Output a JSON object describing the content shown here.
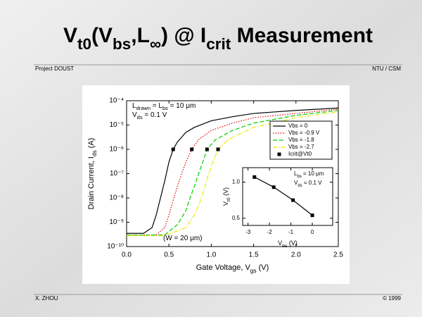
{
  "slide": {
    "title": [
      {
        "text": "V"
      },
      {
        "text": "t0",
        "sub": true
      },
      {
        "text": "(V"
      },
      {
        "text": "bs",
        "sub": true
      },
      {
        "text": ",L"
      },
      {
        "text": "∞",
        "sub": true
      },
      {
        "text": ") @ I"
      },
      {
        "text": "crit",
        "sub": true
      },
      {
        "text": " Measurement"
      }
    ],
    "header_left": "Project DOUST",
    "header_right": "NTU / CSM",
    "footer_left": "X. ZHOU",
    "footer_right": "© 1999"
  },
  "chart_data": [
    {
      "type": "line",
      "ylog": true,
      "xlabel": [
        {
          "text": "Gate Voltage, V"
        },
        {
          "text": "gs",
          "sub": true
        },
        {
          "text": " (V)"
        }
      ],
      "ylabel": [
        {
          "text": "Drain Current, I"
        },
        {
          "text": "ds",
          "sub": true
        },
        {
          "text": " (A)"
        }
      ],
      "xlim": [
        0,
        2.5
      ],
      "ylim": [
        1e-10,
        0.0001
      ],
      "xticks": [
        {
          "value": 0,
          "label": "0.0"
        },
        0.5,
        {
          "value": 1,
          "label": "1.0"
        },
        1.5,
        {
          "value": 2,
          "label": "2.0"
        },
        2.5
      ],
      "yticks": [
        {
          "value": 1e-10,
          "label": "10⁻¹⁰"
        },
        {
          "value": 1e-09,
          "label": "10⁻⁹"
        },
        {
          "value": 1e-08,
          "label": "10⁻⁸"
        },
        {
          "value": 1e-07,
          "label": "10⁻⁷"
        },
        {
          "value": 1e-06,
          "label": "10⁻⁶"
        },
        {
          "value": 1e-05,
          "label": "10⁻⁵"
        },
        {
          "value": 0.0001,
          "label": "10⁻⁴"
        }
      ],
      "annotations": [
        [
          {
            "text": "L"
          },
          {
            "text": "drawn",
            "sub": true
          },
          {
            "text": " = L"
          },
          {
            "text": "bs",
            "sub": true
          },
          {
            "text": " = 10 μm"
          }
        ],
        [
          {
            "text": "V"
          },
          {
            "text": "ds",
            "sub": true
          },
          {
            "text": " = 0.1 V"
          }
        ],
        [
          {
            "text": "(W = 20 μm)"
          }
        ]
      ],
      "legend": "upper right",
      "series": [
        {
          "name": "Vbs = 0",
          "color": "#000000",
          "style": "solid",
          "x": [
            0,
            0.2,
            0.3,
            0.35,
            0.4,
            0.45,
            0.5,
            0.55,
            0.6,
            0.7,
            0.8,
            1.0,
            1.25,
            1.5,
            2.0,
            2.5
          ],
          "values": [
            3.5e-10,
            3.5e-10,
            6e-10,
            2e-09,
            1e-08,
            5e-08,
            3e-07,
            1e-06,
            2e-06,
            5e-06,
            8e-06,
            1.5e-05,
            2.2e-05,
            3e-05,
            4e-05,
            5e-05
          ]
        },
        {
          "name": "Vbs = -0.9 V",
          "color": "#e00000",
          "style": "dotted",
          "x": [
            0,
            0.35,
            0.45,
            0.5,
            0.55,
            0.6,
            0.65,
            0.7,
            0.77,
            0.85,
            1.0,
            1.25,
            1.5,
            2.0,
            2.5
          ],
          "values": [
            3e-10,
            3e-10,
            6e-10,
            2e-09,
            8e-09,
            3e-08,
            1e-07,
            3e-07,
            1e-06,
            2.5e-06,
            6e-06,
            1.2e-05,
            2e-05,
            3e-05,
            4.5e-05
          ]
        },
        {
          "name": "Vbs = -1.8",
          "color": "#00cc00",
          "style": "dashed",
          "x": [
            0,
            0.45,
            0.6,
            0.7,
            0.75,
            0.8,
            0.85,
            0.9,
            0.95,
            1.05,
            1.25,
            1.5,
            2.0,
            2.5
          ],
          "values": [
            3e-10,
            3e-10,
            8e-10,
            3e-09,
            1e-08,
            3e-08,
            1e-07,
            3e-07,
            1e-06,
            2.5e-06,
            6e-06,
            1.2e-05,
            2.5e-05,
            4e-05
          ]
        },
        {
          "name": "Vbs = -2.7",
          "color": "#e8e800",
          "style": "dashdot",
          "x": [
            0,
            0.45,
            0.7,
            0.8,
            0.85,
            0.9,
            0.95,
            1.0,
            1.08,
            1.2,
            1.5,
            2.0,
            2.5
          ],
          "values": [
            2.8e-10,
            2.8e-10,
            6e-10,
            2e-09,
            5e-09,
            1.5e-08,
            6e-08,
            2e-07,
            1e-06,
            2.5e-06,
            8e-06,
            2e-05,
            3.5e-05
          ]
        },
        {
          "name": "Icrit@Vt0",
          "color": "#000000",
          "style": "none",
          "marker": "square",
          "x": [
            0.55,
            0.77,
            0.95,
            1.08
          ],
          "values": [
            1e-06,
            1e-06,
            1e-06,
            1e-06
          ]
        }
      ]
    },
    {
      "type": "line",
      "ylog": false,
      "xlabel": [
        {
          "text": "V"
        },
        {
          "text": "bs",
          "sub": true
        },
        {
          "text": " (V)"
        }
      ],
      "ylabel": [
        {
          "text": "V"
        },
        {
          "text": "t0",
          "sub": true
        },
        {
          "text": " (V)"
        }
      ],
      "xlim": [
        -3.25,
        0.95
      ],
      "ylim": [
        0.4,
        1.2
      ],
      "xticks": [
        -3,
        -2,
        -1,
        0
      ],
      "yticks": [
        0.5,
        {
          "value": 1,
          "label": "1.0"
        }
      ],
      "annotations": [
        [
          {
            "text": "L"
          },
          {
            "text": "bs",
            "sub": true
          },
          {
            "text": " = 10 μm"
          }
        ],
        [
          {
            "text": "V"
          },
          {
            "text": "ds",
            "sub": true
          },
          {
            "text": " = 0.1 V"
          }
        ]
      ],
      "series": [
        {
          "color": "#000000",
          "style": "solid",
          "marker": "square",
          "x": [
            -2.7,
            -1.8,
            -0.9,
            0
          ],
          "values": [
            1.07,
            0.93,
            0.75,
            0.54
          ]
        }
      ]
    }
  ]
}
